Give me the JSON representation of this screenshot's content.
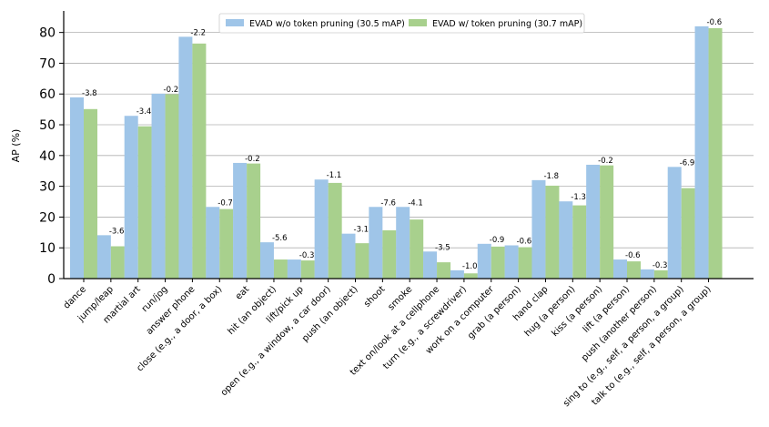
{
  "chart_data": {
    "type": "bar",
    "title": "",
    "xlabel": "",
    "ylabel": "AP (%)",
    "ylim": [
      0,
      87
    ],
    "yticks": [
      0,
      10,
      20,
      30,
      40,
      50,
      60,
      70,
      80
    ],
    "grid": "horizontal",
    "legend_position": "top-center",
    "categories": [
      "dance",
      "jump/leap",
      "martial art",
      "run/jog",
      "answer phone",
      "close (e.g., a door, a box)",
      "eat",
      "hit (an object)",
      "lift/pick up",
      "open (e.g., a window, a car door)",
      "push (an object)",
      "shoot",
      "smoke",
      "text on/look at a cellphone",
      "turn (e.g., a screwdriver)",
      "work on a computer",
      "grab (a person)",
      "hand clap",
      "hug (a person)",
      "kiss (a person)",
      "lift (a person)",
      "push (another person)",
      "sing to (e.g., self, a person, a group)",
      "talk to (e.g., self, a person, a group)"
    ],
    "series": [
      {
        "name": "EVAD w/o token pruning (30.5 mAP)",
        "color": "#9fc5e8",
        "values": [
          58.9,
          14.1,
          52.9,
          60.1,
          78.6,
          23.3,
          37.6,
          11.8,
          6.2,
          32.2,
          14.6,
          23.3,
          23.3,
          8.8,
          2.7,
          11.3,
          10.8,
          32.0,
          25.1,
          37.0,
          6.2,
          3.0,
          36.3,
          82.0
        ]
      },
      {
        "name": "EVAD w/ token pruning (30.7 mAP)",
        "color": "#a8d08d",
        "values": [
          55.1,
          10.5,
          49.5,
          59.9,
          76.4,
          22.6,
          37.4,
          6.2,
          5.9,
          31.1,
          11.5,
          15.7,
          19.2,
          5.3,
          1.7,
          10.4,
          10.2,
          30.2,
          23.8,
          36.8,
          5.6,
          2.7,
          29.4,
          81.4
        ]
      }
    ],
    "annotations": [
      "-3.8",
      "-3.6",
      "-3.4",
      "-0.2",
      "-2.2",
      "-0.7",
      "-0.2",
      "-5.6",
      "-0.3",
      "-1.1",
      "-3.1",
      "-7.6",
      "-4.1",
      "-3.5",
      "-1.0",
      "-0.9",
      "-0.6",
      "-1.8",
      "-1.3",
      "-0.2",
      "-0.6",
      "-0.3",
      "-6.9",
      "-0.6"
    ]
  }
}
